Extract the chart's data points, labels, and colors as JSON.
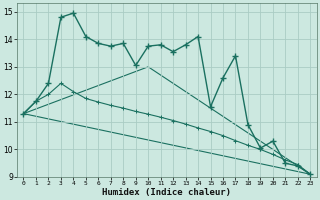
{
  "xlabel": "Humidex (Indice chaleur)",
  "bg_color": "#cce8e0",
  "grid_color": "#aaccC4",
  "line_color": "#1a7060",
  "xlim": [
    -0.5,
    23.5
  ],
  "ylim": [
    9,
    15.3
  ],
  "xticks": [
    0,
    1,
    2,
    3,
    4,
    5,
    6,
    7,
    8,
    9,
    10,
    11,
    12,
    13,
    14,
    15,
    16,
    17,
    18,
    19,
    20,
    21,
    22,
    23
  ],
  "yticks": [
    9,
    10,
    11,
    12,
    13,
    14,
    15
  ],
  "series1_x": [
    0,
    1,
    2,
    3,
    4,
    5,
    6,
    7,
    8,
    9,
    10,
    11,
    12,
    13,
    14,
    15,
    16,
    17,
    18,
    19,
    20,
    21,
    22,
    23
  ],
  "series1_y": [
    11.3,
    11.75,
    12.4,
    14.8,
    14.95,
    14.1,
    13.85,
    13.75,
    13.85,
    13.05,
    13.75,
    13.8,
    13.55,
    13.8,
    14.1,
    11.55,
    12.6,
    13.4,
    10.9,
    10.05,
    10.3,
    9.5,
    9.4,
    9.1
  ],
  "series2_x": [
    0,
    1,
    2,
    3,
    4,
    5,
    6,
    7,
    8,
    9,
    10,
    11,
    12,
    13,
    14,
    15,
    16,
    17,
    18,
    19,
    20,
    21,
    22,
    23
  ],
  "series2_y": [
    11.3,
    11.75,
    12.0,
    12.4,
    12.1,
    11.85,
    11.72,
    11.6,
    11.5,
    11.38,
    11.28,
    11.17,
    11.05,
    10.92,
    10.78,
    10.65,
    10.5,
    10.32,
    10.15,
    10.0,
    9.82,
    9.62,
    9.45,
    9.1
  ],
  "series3_x": [
    0,
    23
  ],
  "series3_y": [
    11.3,
    9.1
  ],
  "series4_x": [
    0,
    10,
    23
  ],
  "series4_y": [
    11.3,
    13.0,
    9.1
  ]
}
